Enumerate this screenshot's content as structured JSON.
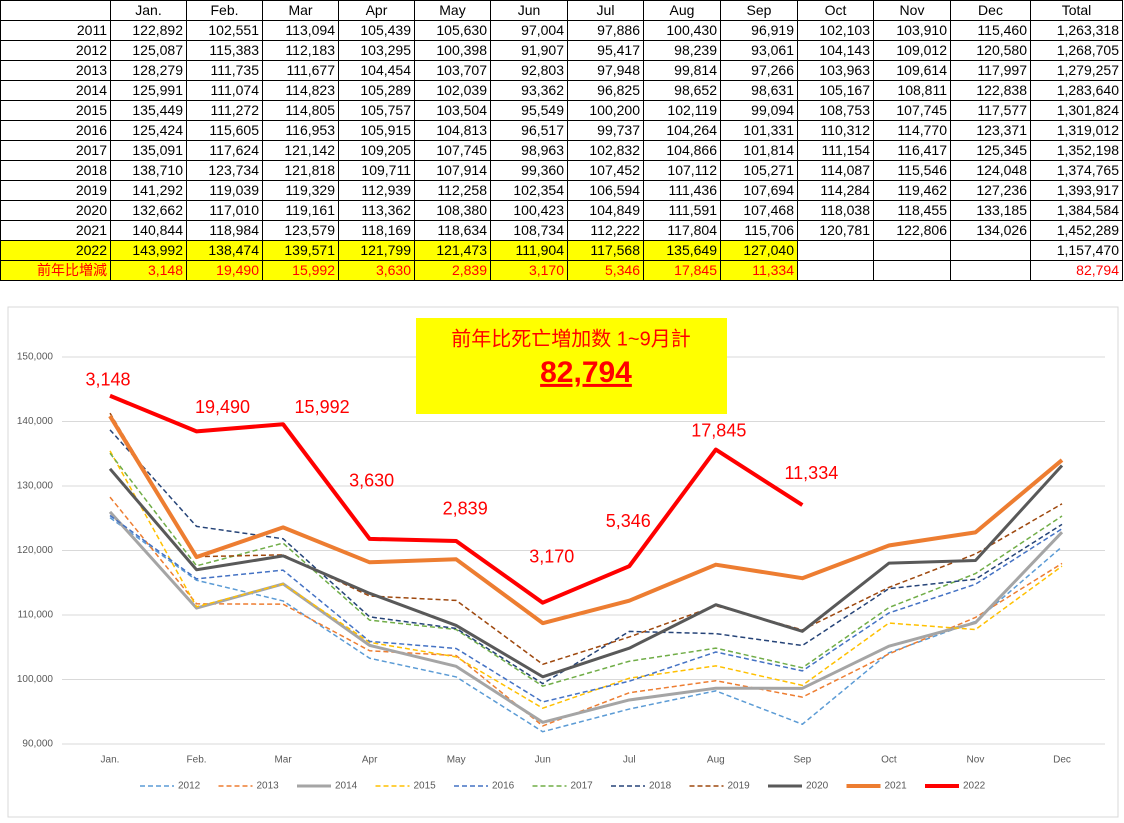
{
  "table": {
    "header": [
      null,
      "Jan.",
      "Feb.",
      "Mar",
      "Apr",
      "May",
      "Jun",
      "Jul",
      "Aug",
      "Sep",
      "Oct",
      "Nov",
      "Dec",
      "Total"
    ],
    "rows": [
      [
        "2011",
        "122,892",
        "102,551",
        "113,094",
        "105,439",
        "105,630",
        "97,004",
        "97,886",
        "100,430",
        "96,919",
        "102,103",
        "103,910",
        "115,460",
        "1,263,318"
      ],
      [
        "2012",
        "125,087",
        "115,383",
        "112,183",
        "103,295",
        "100,398",
        "91,907",
        "95,417",
        "98,239",
        "93,061",
        "104,143",
        "109,012",
        "120,580",
        "1,268,705"
      ],
      [
        "2013",
        "128,279",
        "111,735",
        "111,677",
        "104,454",
        "103,707",
        "92,803",
        "97,948",
        "99,814",
        "97,266",
        "103,963",
        "109,614",
        "117,997",
        "1,279,257"
      ],
      [
        "2014",
        "125,991",
        "111,074",
        "114,823",
        "105,289",
        "102,039",
        "93,362",
        "96,825",
        "98,652",
        "98,631",
        "105,167",
        "108,811",
        "122,838",
        "1,283,640"
      ],
      [
        "2015",
        "135,449",
        "111,272",
        "114,805",
        "105,757",
        "103,504",
        "95,549",
        "100,200",
        "102,119",
        "99,094",
        "108,753",
        "107,745",
        "117,577",
        "1,301,824"
      ],
      [
        "2016",
        "125,424",
        "115,605",
        "116,953",
        "105,915",
        "104,813",
        "96,517",
        "99,737",
        "104,264",
        "101,331",
        "110,312",
        "114,770",
        "123,371",
        "1,319,012"
      ],
      [
        "2017",
        "135,091",
        "117,624",
        "121,142",
        "109,205",
        "107,745",
        "98,963",
        "102,832",
        "104,866",
        "101,814",
        "111,154",
        "116,417",
        "125,345",
        "1,352,198"
      ],
      [
        "2018",
        "138,710",
        "123,734",
        "121,818",
        "109,711",
        "107,914",
        "99,360",
        "107,452",
        "107,112",
        "105,271",
        "114,087",
        "115,546",
        "124,048",
        "1,374,765"
      ],
      [
        "2019",
        "141,292",
        "119,039",
        "119,329",
        "112,939",
        "112,258",
        "102,354",
        "106,594",
        "111,436",
        "107,694",
        "114,284",
        "119,462",
        "127,236",
        "1,393,917"
      ],
      [
        "2020",
        "132,662",
        "117,010",
        "119,161",
        "113,362",
        "108,380",
        "100,423",
        "104,849",
        "111,591",
        "107,468",
        "118,038",
        "118,455",
        "133,185",
        "1,384,584"
      ],
      [
        "2021",
        "140,844",
        "118,984",
        "123,579",
        "118,169",
        "118,634",
        "108,734",
        "112,222",
        "117,804",
        "115,706",
        "120,781",
        "122,806",
        "134,026",
        "1,452,289"
      ],
      [
        "2022",
        "143,992",
        "138,474",
        "139,571",
        "121,799",
        "121,473",
        "111,904",
        "117,568",
        "135,649",
        "127,040",
        null,
        null,
        null,
        "1,157,470"
      ],
      [
        "前年比増減",
        "3,148",
        "19,490",
        "15,992",
        "3,630",
        "2,839",
        "3,170",
        "5,346",
        "17,845",
        "11,334",
        null,
        null,
        null,
        "82,794"
      ]
    ]
  },
  "chart_data": {
    "type": "line",
    "title": "前年比死亡増加数 1~9月計",
    "subtitle": "82,794",
    "categories": [
      "Jan.",
      "Feb.",
      "Mar",
      "Apr",
      "May",
      "Jun",
      "Jul",
      "Aug",
      "Sep",
      "Oct",
      "Nov",
      "Dec"
    ],
    "ylim": [
      90000,
      150000
    ],
    "yticks": [
      {
        "value": 90000,
        "label": "90,000"
      },
      {
        "value": 100000,
        "label": "100,000"
      },
      {
        "value": 110000,
        "label": "110,000"
      },
      {
        "value": 120000,
        "label": "120,000"
      },
      {
        "value": 130000,
        "label": "130,000"
      },
      {
        "value": 140000,
        "label": "140,000"
      },
      {
        "value": 150000,
        "label": "150,000"
      }
    ],
    "grid": true,
    "legend": "bottom",
    "series": [
      {
        "name": "2012",
        "color": "#5b9bd5",
        "style": "dashed",
        "values": [
          125087,
          115383,
          112183,
          103295,
          100398,
          91907,
          95417,
          98239,
          93061,
          104143,
          109012,
          120580
        ]
      },
      {
        "name": "2013",
        "color": "#ed7d31",
        "style": "dashed",
        "values": [
          128279,
          111735,
          111677,
          104454,
          103707,
          92803,
          97948,
          99814,
          97266,
          103963,
          109614,
          117997
        ]
      },
      {
        "name": "2014",
        "color": "#a5a5a5",
        "style": "solid",
        "values": [
          125991,
          111074,
          114823,
          105289,
          102039,
          93362,
          96825,
          98652,
          98631,
          105167,
          108811,
          122838
        ]
      },
      {
        "name": "2015",
        "color": "#ffc000",
        "style": "dashed",
        "values": [
          135449,
          111272,
          114805,
          105757,
          103504,
          95549,
          100200,
          102119,
          99094,
          108753,
          107745,
          117577
        ]
      },
      {
        "name": "2016",
        "color": "#4472c4",
        "style": "dashed",
        "values": [
          125424,
          115605,
          116953,
          105915,
          104813,
          96517,
          99737,
          104264,
          101331,
          110312,
          114770,
          123371
        ]
      },
      {
        "name": "2017",
        "color": "#70ad47",
        "style": "dashed",
        "values": [
          135091,
          117624,
          121142,
          109205,
          107745,
          98963,
          102832,
          104866,
          101814,
          111154,
          116417,
          125345
        ]
      },
      {
        "name": "2018",
        "color": "#264478",
        "style": "dashed",
        "values": [
          138710,
          123734,
          121818,
          109711,
          107914,
          99360,
          107452,
          107112,
          105271,
          114087,
          115546,
          124048
        ]
      },
      {
        "name": "2019",
        "color": "#9e480e",
        "style": "dashed",
        "values": [
          141292,
          119039,
          119329,
          112939,
          112258,
          102354,
          106594,
          111436,
          107694,
          114284,
          119462,
          127236
        ]
      },
      {
        "name": "2020",
        "color": "#595959",
        "style": "solid",
        "values": [
          132662,
          117010,
          119161,
          113362,
          108380,
          100423,
          104849,
          111591,
          107468,
          118038,
          118455,
          133185
        ]
      },
      {
        "name": "2021",
        "color": "#ed7d31",
        "style": "bold",
        "values": [
          140844,
          118984,
          123579,
          118169,
          118634,
          108734,
          112222,
          117804,
          115706,
          120781,
          122806,
          134026
        ]
      },
      {
        "name": "2022",
        "color": "#ff0000",
        "style": "bold",
        "values": [
          143992,
          138474,
          139571,
          121799,
          121473,
          111904,
          117568,
          135649,
          127040,
          null,
          null,
          null
        ]
      }
    ],
    "annotations": [
      "3,148",
      "19,490",
      "15,992",
      "3,630",
      "2,839",
      "3,170",
      "5,346",
      "17,845",
      "11,334"
    ]
  }
}
